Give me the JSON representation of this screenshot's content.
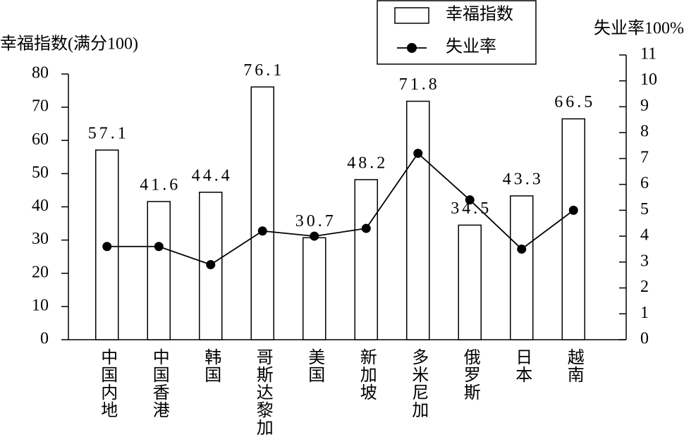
{
  "chart_data": {
    "type": "bar-line",
    "y_label": "幸福指数(满分100)",
    "y2_label": "失业率100%",
    "categories": [
      "中国内地",
      "中国香港",
      "韩国",
      "哥斯达黎加",
      "美国",
      "新加坡",
      "多米尼加",
      "俄罗斯",
      "日本",
      "越南"
    ],
    "series": [
      {
        "name": "幸福指数",
        "type": "bar",
        "color": "#ffffff",
        "values": [
          57.1,
          41.6,
          44.4,
          76.1,
          30.7,
          48.2,
          71.8,
          34.5,
          43.3,
          66.5
        ]
      },
      {
        "name": "失业率",
        "type": "line",
        "axis": "y2",
        "color": "#000000",
        "values": [
          3.6,
          3.6,
          2.9,
          4.2,
          4.0,
          4.3,
          7.2,
          5.4,
          3.5,
          5.0
        ]
      }
    ],
    "ylim": [
      0,
      80
    ],
    "yticks": [
      0,
      10,
      20,
      30,
      40,
      50,
      60,
      70,
      80
    ],
    "y2lim": [
      0,
      11
    ],
    "y2ticks": [
      0,
      1,
      2,
      3,
      4,
      5,
      6,
      7,
      8,
      9,
      10,
      11
    ],
    "grid": false
  }
}
